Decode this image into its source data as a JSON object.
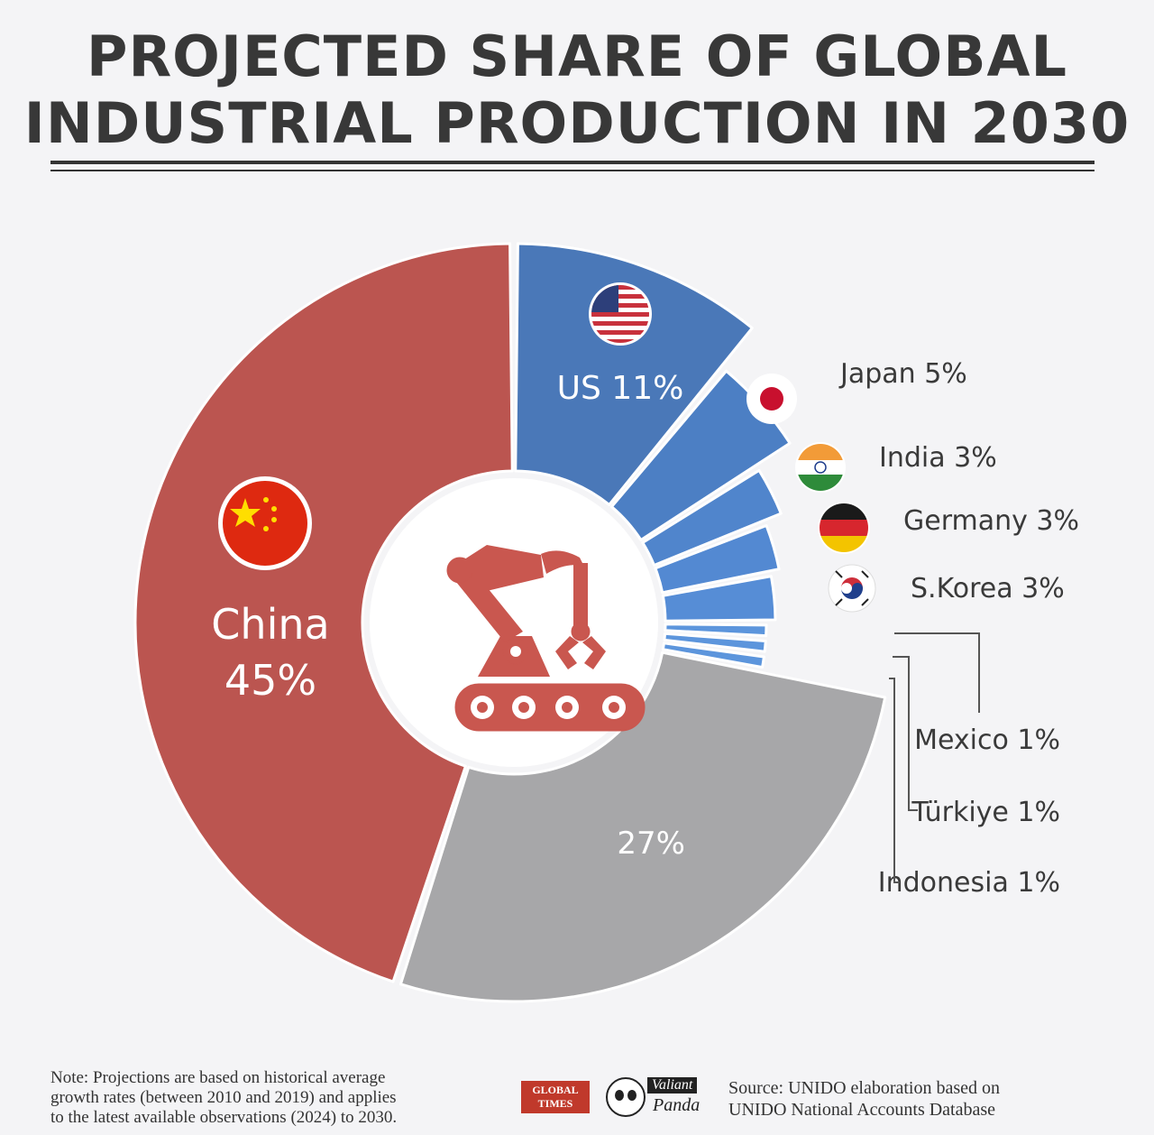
{
  "title_line1": "PROJECTED SHARE OF GLOBAL",
  "title_line2": "INDUSTRIAL PRODUCTION IN 2030",
  "chart_data": {
    "type": "pie",
    "title": "PROJECTED SHARE OF GLOBAL INDUSTRIAL PRODUCTION IN 2030",
    "unit": "%",
    "slices": [
      {
        "label": "US",
        "display": "US 11%",
        "value": 11,
        "color": "#4a78b8",
        "flag": "us-flag"
      },
      {
        "label": "Japan",
        "display": "Japan 5%",
        "value": 5,
        "color": "#4c7fc4",
        "flag": "japan-flag"
      },
      {
        "label": "India",
        "display": "India 3%",
        "value": 3,
        "color": "#5085cc",
        "flag": "india-flag"
      },
      {
        "label": "Germany",
        "display": "Germany 3%",
        "value": 3,
        "color": "#5389d2",
        "flag": "germany-flag"
      },
      {
        "label": "S.Korea",
        "display": "S.Korea 3%",
        "value": 3,
        "color": "#568dd6",
        "flag": "south-korea-flag"
      },
      {
        "label": "Mexico",
        "display": "Mexico 1%",
        "value": 1,
        "color": "#5c95dc"
      },
      {
        "label": "Türkiye",
        "display": "Türkiye 1%",
        "value": 1,
        "color": "#5c95dc"
      },
      {
        "label": "Indonesia",
        "display": "Indonesia 1%",
        "value": 1,
        "color": "#5c95dc"
      },
      {
        "label": "",
        "display": "27%",
        "value": 27,
        "color": "#a7a7a9"
      },
      {
        "label": "China",
        "display1": "China",
        "display2": "45%",
        "value": 45,
        "color": "#bb5550",
        "flag": "china-flag"
      }
    ],
    "center_icon": "industrial-robot-arm-icon",
    "center_icon_color": "#c9574f"
  },
  "footer": {
    "note_line1": "Note: Projections are based on historical average",
    "note_line2": "growth rates (between 2010 and 2019) and applies",
    "note_line3": "to the latest available observations (2024) to 2030.",
    "logo1_line1": "GLOBAL",
    "logo1_line2": "TIMES",
    "logo2_line1": "Valiant",
    "logo2_line2": "Panda",
    "source_line1": "Source: UNIDO elaboration based on",
    "source_line2": "UNIDO National Accounts Database"
  }
}
